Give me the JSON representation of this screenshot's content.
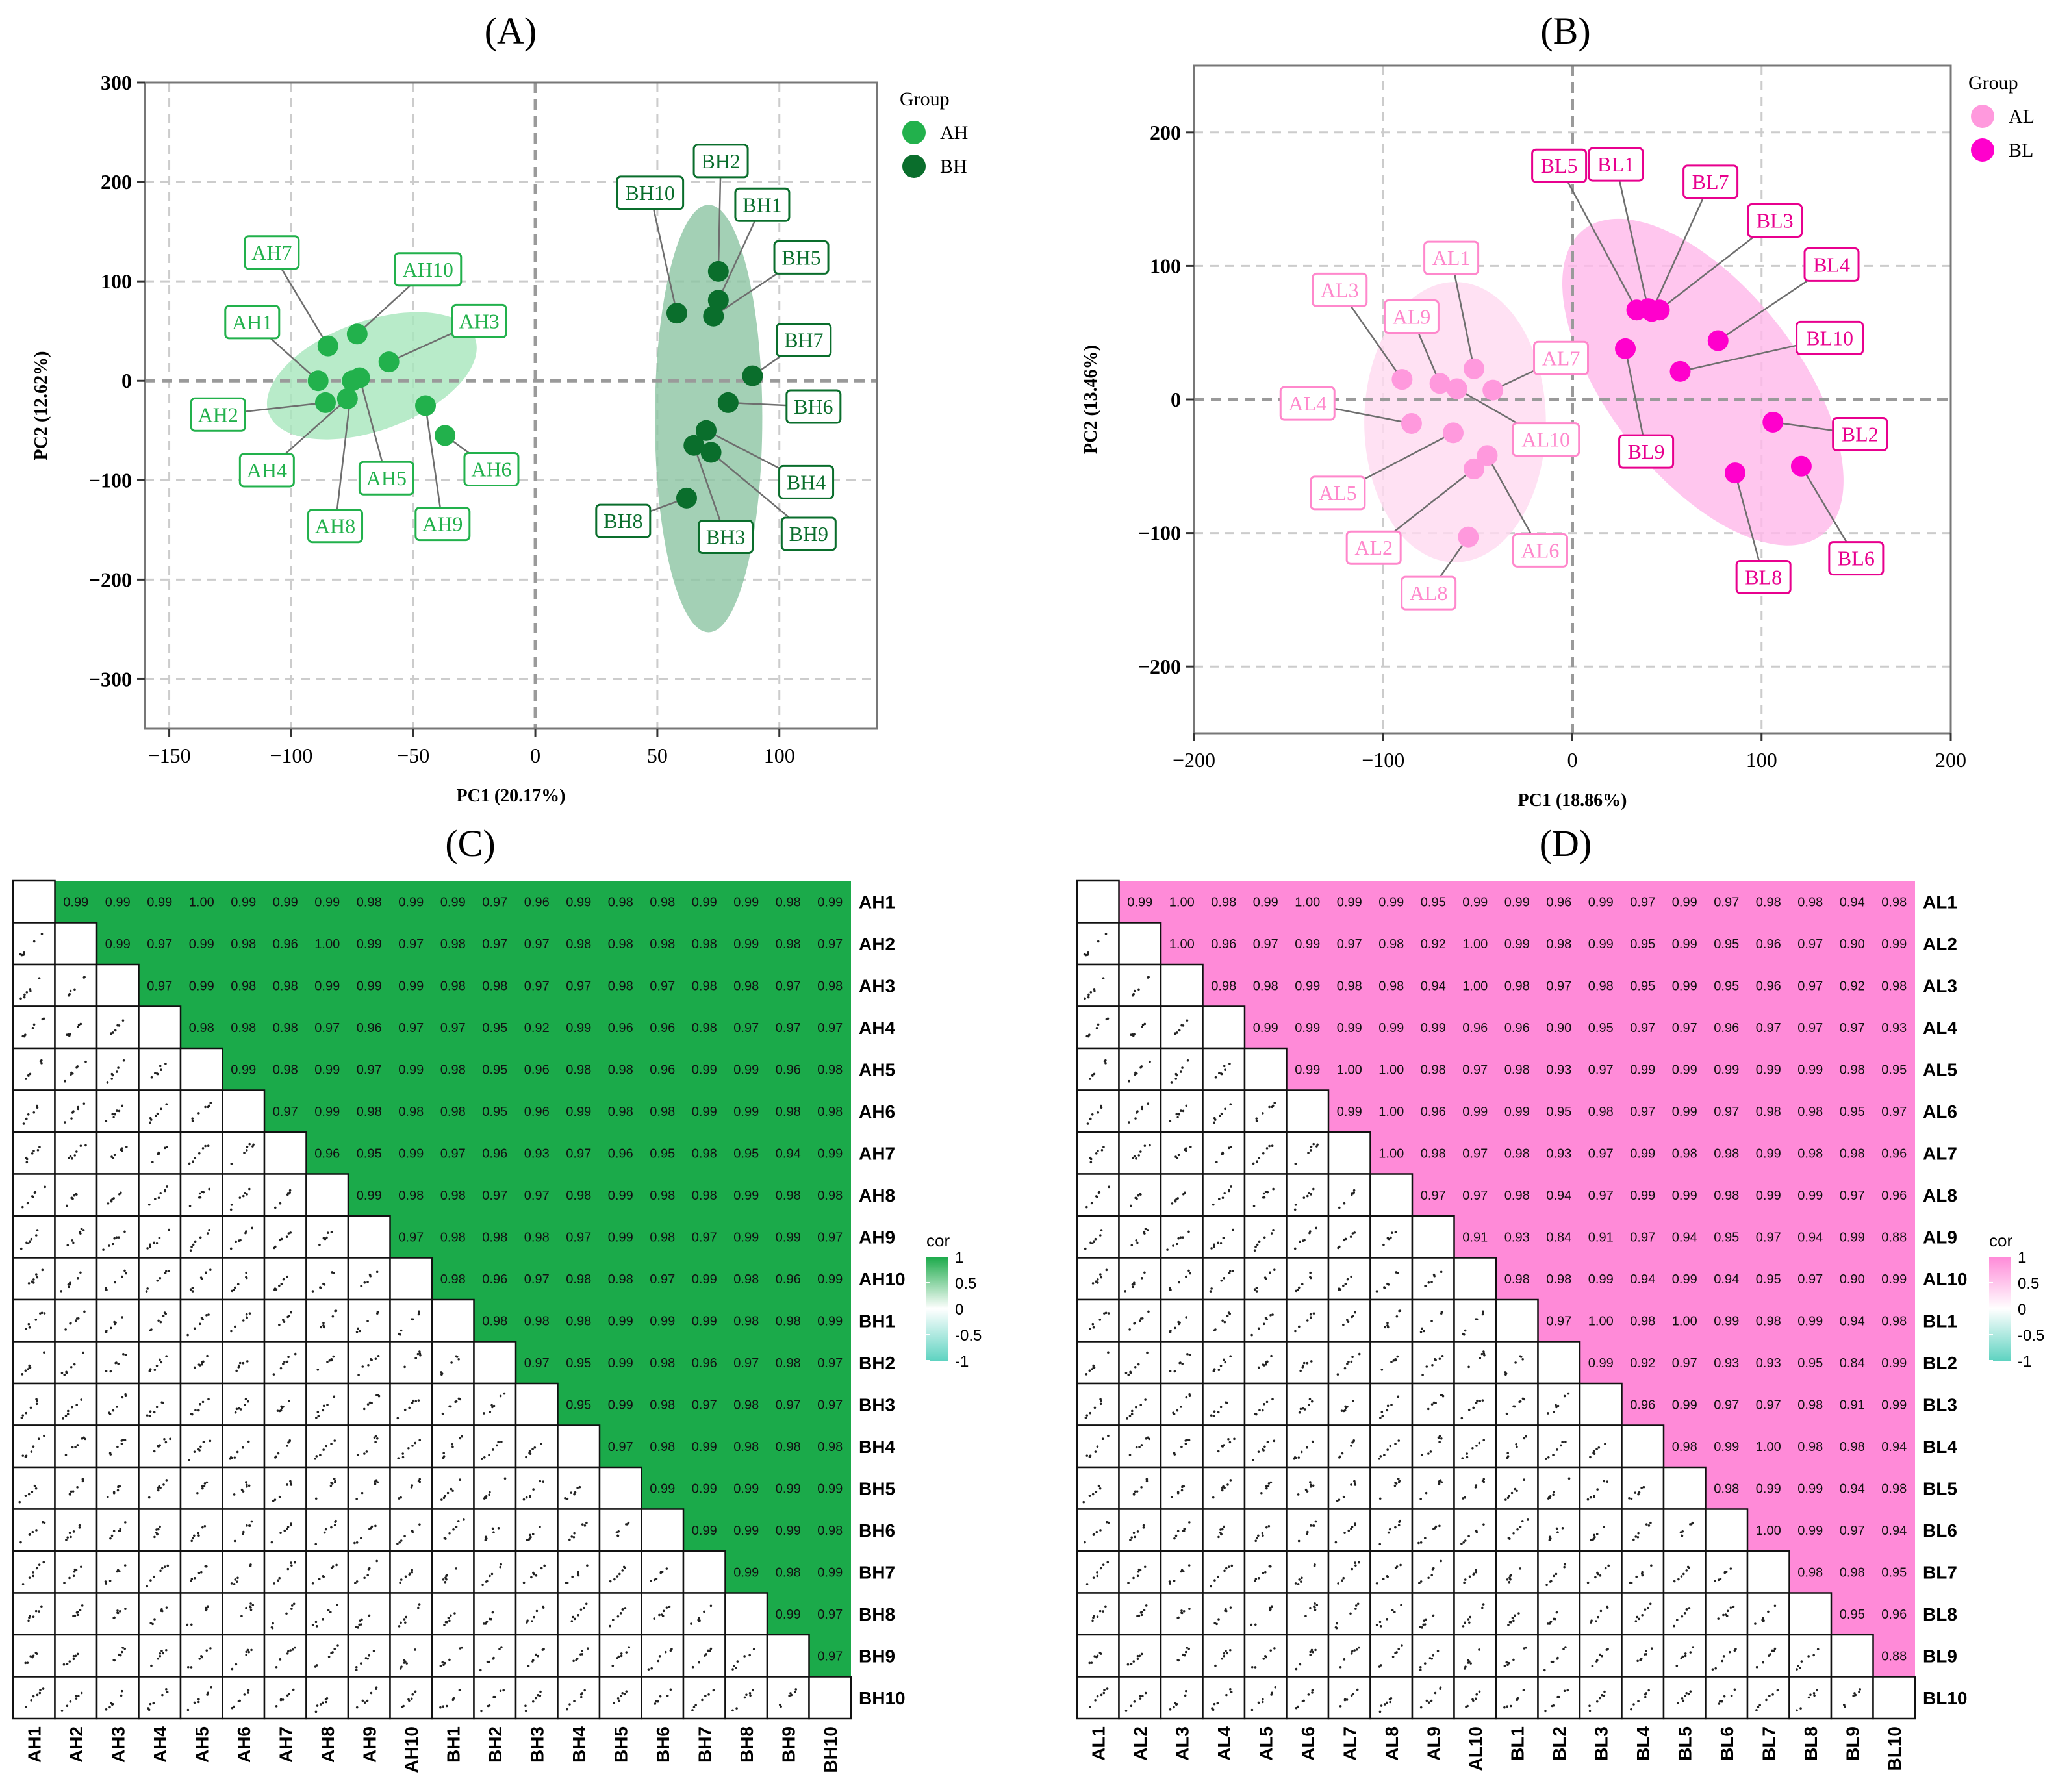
{
  "chart_data": [
    {
      "panel": "(A)",
      "type": "scatter",
      "xlabel": "PC1 (20.17%)",
      "ylabel": "PC2 (12.62%)",
      "xlim": [
        -160,
        140
      ],
      "ylim": [
        -350,
        300
      ],
      "xticks": [
        -150,
        -100,
        -50,
        0,
        50,
        100
      ],
      "yticks": [
        -300,
        -200,
        -100,
        0,
        100,
        200,
        300
      ],
      "grid": true,
      "legend": {
        "title": "Group",
        "position": "top-right-outside",
        "entries": [
          "AH",
          "BH"
        ]
      },
      "colors": {
        "AH": "#22B14C",
        "BH": "#0A6E2C",
        "ellipse_AH": "#A6E6BC",
        "ellipse_BH": "#8CC4A2",
        "label_AH": "#22B14C",
        "label_BH": "#0A6E2C"
      },
      "points": [
        {
          "label": "AH1",
          "group": "AH",
          "x": -89,
          "y": 0,
          "lx": -116,
          "ly": 59
        },
        {
          "label": "AH2",
          "group": "AH",
          "x": -86,
          "y": -22,
          "lx": -130,
          "ly": -34
        },
        {
          "label": "AH3",
          "group": "AH",
          "x": -60,
          "y": 19,
          "lx": -23,
          "ly": 60
        },
        {
          "label": "AH4",
          "group": "AH",
          "x": -77,
          "y": -18,
          "lx": -110,
          "ly": -90
        },
        {
          "label": "AH5",
          "group": "AH",
          "x": -72,
          "y": 3,
          "lx": -61,
          "ly": -98
        },
        {
          "label": "AH6",
          "group": "AH",
          "x": -37,
          "y": -55,
          "lx": -18,
          "ly": -89
        },
        {
          "label": "AH7",
          "group": "AH",
          "x": -85,
          "y": 35,
          "lx": -108,
          "ly": 129
        },
        {
          "label": "AH8",
          "group": "AH",
          "x": -75,
          "y": 0,
          "lx": -82,
          "ly": -146
        },
        {
          "label": "AH9",
          "group": "AH",
          "x": -45,
          "y": -25,
          "lx": -38,
          "ly": -144
        },
        {
          "label": "AH10",
          "group": "AH",
          "x": -73,
          "y": 47,
          "lx": -44,
          "ly": 112
        },
        {
          "label": "BH1",
          "group": "BH",
          "x": 75,
          "y": 81,
          "lx": 93,
          "ly": 177
        },
        {
          "label": "BH2",
          "group": "BH",
          "x": 75,
          "y": 110,
          "lx": 76,
          "ly": 221
        },
        {
          "label": "BH3",
          "group": "BH",
          "x": 65,
          "y": -65,
          "lx": 78,
          "ly": -157
        },
        {
          "label": "BH4",
          "group": "BH",
          "x": 70,
          "y": -50,
          "lx": 111,
          "ly": -102
        },
        {
          "label": "BH5",
          "group": "BH",
          "x": 73,
          "y": 65,
          "lx": 109,
          "ly": 124
        },
        {
          "label": "BH6",
          "group": "BH",
          "x": 79,
          "y": -22,
          "lx": 114,
          "ly": -26
        },
        {
          "label": "BH7",
          "group": "BH",
          "x": 89,
          "y": 5,
          "lx": 110,
          "ly": 41
        },
        {
          "label": "BH8",
          "group": "BH",
          "x": 62,
          "y": -118,
          "lx": 36,
          "ly": -141
        },
        {
          "label": "BH9",
          "group": "BH",
          "x": 72,
          "y": -72,
          "lx": 112,
          "ly": -154
        },
        {
          "label": "BH10",
          "group": "BH",
          "x": 58,
          "y": 68,
          "lx": 47,
          "ly": 189
        }
      ],
      "ellipses": [
        {
          "group": "AH",
          "cx": -67,
          "cy": 5,
          "rx": 45,
          "ry": 55,
          "angle_deg": -20
        },
        {
          "group": "BH",
          "cx": 71,
          "cy": -38,
          "rx": 22,
          "ry": 215,
          "angle_deg": 0
        }
      ]
    },
    {
      "panel": "(B)",
      "type": "scatter",
      "xlabel": "PC1 (18.86%)",
      "ylabel": "PC2 (13.46%)",
      "xlim": [
        -200,
        200
      ],
      "ylim": [
        -250,
        250
      ],
      "xticks": [
        -200,
        -100,
        0,
        100,
        200
      ],
      "yticks": [
        -200,
        -100,
        0,
        100,
        200
      ],
      "grid": true,
      "legend": {
        "title": "Group",
        "position": "top-right-outside",
        "entries": [
          "AL",
          "BL"
        ]
      },
      "colors": {
        "AL": "#FF99DD",
        "BL": "#FF00CC",
        "ellipse_AL": "#FFD9F0",
        "ellipse_BL": "#FFB8EA",
        "label_AL": "#FF88CC",
        "label_BL": "#E8008E"
      },
      "points": [
        {
          "label": "AL1",
          "group": "AL",
          "x": -52,
          "y": 23,
          "lx": -64,
          "ly": 106
        },
        {
          "label": "AL2",
          "group": "AL",
          "x": -52,
          "y": -52,
          "lx": -105,
          "ly": -111
        },
        {
          "label": "AL3",
          "group": "AL",
          "x": -90,
          "y": 15,
          "lx": -123,
          "ly": 82
        },
        {
          "label": "AL4",
          "group": "AL",
          "x": -85,
          "y": -18,
          "lx": -140,
          "ly": -3
        },
        {
          "label": "AL5",
          "group": "AL",
          "x": -63,
          "y": -25,
          "lx": -124,
          "ly": -70
        },
        {
          "label": "AL6",
          "group": "AL",
          "x": -45,
          "y": -42,
          "lx": -17,
          "ly": -113
        },
        {
          "label": "AL7",
          "group": "AL",
          "x": -42,
          "y": 7,
          "lx": -6,
          "ly": 31
        },
        {
          "label": "AL8",
          "group": "AL",
          "x": -55,
          "y": -103,
          "lx": -76,
          "ly": -145
        },
        {
          "label": "AL9",
          "group": "AL",
          "x": -70,
          "y": 12,
          "lx": -85,
          "ly": 62
        },
        {
          "label": "AL10",
          "group": "AL",
          "x": -61,
          "y": 8,
          "lx": -14,
          "ly": -30
        },
        {
          "label": "BL1",
          "group": "BL",
          "x": 40,
          "y": 68,
          "lx": 23,
          "ly": 176
        },
        {
          "label": "BL2",
          "group": "BL",
          "x": 106,
          "y": -17,
          "lx": 152,
          "ly": -26
        },
        {
          "label": "BL3",
          "group": "BL",
          "x": 46,
          "y": 67,
          "lx": 107,
          "ly": 134
        },
        {
          "label": "BL4",
          "group": "BL",
          "x": 77,
          "y": 44,
          "lx": 137,
          "ly": 101
        },
        {
          "label": "BL5",
          "group": "BL",
          "x": 34,
          "y": 67,
          "lx": -7,
          "ly": 175
        },
        {
          "label": "BL6",
          "group": "BL",
          "x": 121,
          "y": -50,
          "lx": 150,
          "ly": -119
        },
        {
          "label": "BL7",
          "group": "BL",
          "x": 42,
          "y": 66,
          "lx": 73,
          "ly": 163
        },
        {
          "label": "BL8",
          "group": "BL",
          "x": 86,
          "y": -55,
          "lx": 101,
          "ly": -133
        },
        {
          "label": "BL9",
          "group": "BL",
          "x": 28,
          "y": 38,
          "lx": 39,
          "ly": -39
        },
        {
          "label": "BL10",
          "group": "BL",
          "x": 57,
          "y": 21,
          "lx": 136,
          "ly": 46
        }
      ],
      "ellipses": [
        {
          "group": "AL",
          "cx": -62,
          "cy": -17,
          "rx": 48,
          "ry": 105,
          "angle_deg": 0
        },
        {
          "group": "BL",
          "cx": 69,
          "cy": 13,
          "rx": 50,
          "ry": 145,
          "angle_deg": -38
        }
      ]
    },
    {
      "panel": "(C)",
      "type": "heatmap",
      "labels": [
        "AH1",
        "AH2",
        "AH3",
        "AH4",
        "AH5",
        "AH6",
        "AH7",
        "AH8",
        "AH9",
        "AH10",
        "BH1",
        "BH2",
        "BH3",
        "BH4",
        "BH5",
        "BH6",
        "BH7",
        "BH8",
        "BH9",
        "BH10"
      ],
      "upper_values": [
        [
          "0.99",
          "0.99",
          "0.99",
          "1.00",
          "0.99",
          "0.99",
          "0.99",
          "0.98",
          "0.99",
          "0.99",
          "0.97",
          "0.96",
          "0.99",
          "0.98",
          "0.98",
          "0.99",
          "0.99",
          "0.98",
          "0.99"
        ],
        [
          "0.99",
          "0.97",
          "0.99",
          "0.98",
          "0.96",
          "1.00",
          "0.99",
          "0.97",
          "0.98",
          "0.97",
          "0.97",
          "0.98",
          "0.98",
          "0.98",
          "0.98",
          "0.99",
          "0.98",
          "0.97"
        ],
        [
          "0.97",
          "0.99",
          "0.98",
          "0.98",
          "0.99",
          "0.99",
          "0.99",
          "0.98",
          "0.98",
          "0.97",
          "0.97",
          "0.98",
          "0.97",
          "0.98",
          "0.98",
          "0.97",
          "0.98"
        ],
        [
          "0.98",
          "0.98",
          "0.98",
          "0.97",
          "0.96",
          "0.97",
          "0.97",
          "0.95",
          "0.92",
          "0.99",
          "0.96",
          "0.96",
          "0.98",
          "0.97",
          "0.97",
          "0.97"
        ],
        [
          "0.99",
          "0.98",
          "0.99",
          "0.97",
          "0.99",
          "0.98",
          "0.95",
          "0.96",
          "0.98",
          "0.98",
          "0.96",
          "0.99",
          "0.99",
          "0.96",
          "0.98"
        ],
        [
          "0.97",
          "0.99",
          "0.98",
          "0.98",
          "0.98",
          "0.95",
          "0.96",
          "0.99",
          "0.98",
          "0.98",
          "0.99",
          "0.99",
          "0.98",
          "0.98"
        ],
        [
          "0.96",
          "0.95",
          "0.99",
          "0.97",
          "0.96",
          "0.93",
          "0.97",
          "0.96",
          "0.95",
          "0.98",
          "0.95",
          "0.94",
          "0.99"
        ],
        [
          "0.99",
          "0.98",
          "0.98",
          "0.97",
          "0.97",
          "0.98",
          "0.99",
          "0.98",
          "0.98",
          "0.99",
          "0.98",
          "0.98"
        ],
        [
          "0.97",
          "0.98",
          "0.98",
          "0.98",
          "0.97",
          "0.99",
          "0.98",
          "0.97",
          "0.99",
          "0.99",
          "0.97"
        ],
        [
          "0.98",
          "0.96",
          "0.97",
          "0.98",
          "0.98",
          "0.97",
          "0.99",
          "0.98",
          "0.96",
          "0.99"
        ],
        [
          "0.98",
          "0.98",
          "0.98",
          "0.99",
          "0.99",
          "0.99",
          "0.98",
          "0.98",
          "0.99"
        ],
        [
          "0.97",
          "0.95",
          "0.99",
          "0.98",
          "0.96",
          "0.97",
          "0.98",
          "0.97"
        ],
        [
          "0.95",
          "0.99",
          "0.98",
          "0.97",
          "0.98",
          "0.97",
          "0.97"
        ],
        [
          "0.97",
          "0.98",
          "0.99",
          "0.98",
          "0.98",
          "0.98"
        ],
        [
          "0.99",
          "0.99",
          "0.99",
          "0.99",
          "0.99"
        ],
        [
          "0.99",
          "0.99",
          "0.99",
          "0.98"
        ],
        [
          "0.99",
          "0.98",
          "0.99"
        ],
        [
          "0.99",
          "0.97"
        ],
        [
          "0.97"
        ],
        []
      ],
      "fill_color": "#1BAA4A",
      "legend": {
        "title": "cor",
        "ticks": [
          "1",
          "0.5",
          "0",
          "-0.5",
          "-1"
        ],
        "high": "#1BAA4A",
        "mid": "#ffffff",
        "low": "#5FD3C1"
      }
    },
    {
      "panel": "(D)",
      "type": "heatmap",
      "labels": [
        "AL1",
        "AL2",
        "AL3",
        "AL4",
        "AL5",
        "AL6",
        "AL7",
        "AL8",
        "AL9",
        "AL10",
        "BL1",
        "BL2",
        "BL3",
        "BL4",
        "BL5",
        "BL6",
        "BL7",
        "BL8",
        "BL9",
        "BL10"
      ],
      "upper_values": [
        [
          "0.99",
          "1.00",
          "0.98",
          "0.99",
          "1.00",
          "0.99",
          "0.99",
          "0.95",
          "0.99",
          "0.99",
          "0.96",
          "0.99",
          "0.97",
          "0.99",
          "0.97",
          "0.98",
          "0.98",
          "0.94",
          "0.98"
        ],
        [
          "1.00",
          "0.96",
          "0.97",
          "0.99",
          "0.97",
          "0.98",
          "0.92",
          "1.00",
          "0.99",
          "0.98",
          "0.99",
          "0.95",
          "0.99",
          "0.95",
          "0.96",
          "0.97",
          "0.90",
          "0.99"
        ],
        [
          "0.98",
          "0.98",
          "0.99",
          "0.98",
          "0.98",
          "0.94",
          "1.00",
          "0.98",
          "0.97",
          "0.98",
          "0.95",
          "0.99",
          "0.95",
          "0.96",
          "0.97",
          "0.92",
          "0.98"
        ],
        [
          "0.99",
          "0.99",
          "0.99",
          "0.99",
          "0.99",
          "0.96",
          "0.96",
          "0.90",
          "0.95",
          "0.97",
          "0.97",
          "0.96",
          "0.97",
          "0.97",
          "0.97",
          "0.93"
        ],
        [
          "0.99",
          "1.00",
          "1.00",
          "0.98",
          "0.97",
          "0.98",
          "0.93",
          "0.97",
          "0.99",
          "0.99",
          "0.99",
          "0.99",
          "0.99",
          "0.98",
          "0.95"
        ],
        [
          "0.99",
          "1.00",
          "0.96",
          "0.99",
          "0.99",
          "0.95",
          "0.98",
          "0.97",
          "0.99",
          "0.97",
          "0.98",
          "0.98",
          "0.95",
          "0.97"
        ],
        [
          "1.00",
          "0.98",
          "0.97",
          "0.98",
          "0.93",
          "0.97",
          "0.99",
          "0.98",
          "0.98",
          "0.99",
          "0.98",
          "0.98",
          "0.96"
        ],
        [
          "0.97",
          "0.97",
          "0.98",
          "0.94",
          "0.97",
          "0.99",
          "0.99",
          "0.98",
          "0.99",
          "0.99",
          "0.97",
          "0.96"
        ],
        [
          "0.91",
          "0.93",
          "0.84",
          "0.91",
          "0.97",
          "0.94",
          "0.95",
          "0.97",
          "0.94",
          "0.99",
          "0.88"
        ],
        [
          "0.98",
          "0.98",
          "0.99",
          "0.94",
          "0.99",
          "0.94",
          "0.95",
          "0.97",
          "0.90",
          "0.99"
        ],
        [
          "0.97",
          "1.00",
          "0.98",
          "1.00",
          "0.99",
          "0.98",
          "0.99",
          "0.94",
          "0.98"
        ],
        [
          "0.99",
          "0.92",
          "0.97",
          "0.93",
          "0.93",
          "0.95",
          "0.84",
          "0.99"
        ],
        [
          "0.96",
          "0.99",
          "0.97",
          "0.97",
          "0.98",
          "0.91",
          "0.99"
        ],
        [
          "0.98",
          "0.99",
          "1.00",
          "0.98",
          "0.98",
          "0.94"
        ],
        [
          "0.98",
          "0.99",
          "0.99",
          "0.94",
          "0.98"
        ],
        [
          "1.00",
          "0.99",
          "0.97",
          "0.94"
        ],
        [
          "0.98",
          "0.98",
          "0.95"
        ],
        [
          "0.95",
          "0.96"
        ],
        [
          "0.88"
        ],
        []
      ],
      "fill_color": "#FF8AD8",
      "legend": {
        "title": "cor",
        "ticks": [
          "1",
          "0.5",
          "0",
          "-0.5",
          "-1"
        ],
        "high": "#FF8AD8",
        "mid": "#ffffff",
        "low": "#5FD3C1"
      }
    }
  ]
}
